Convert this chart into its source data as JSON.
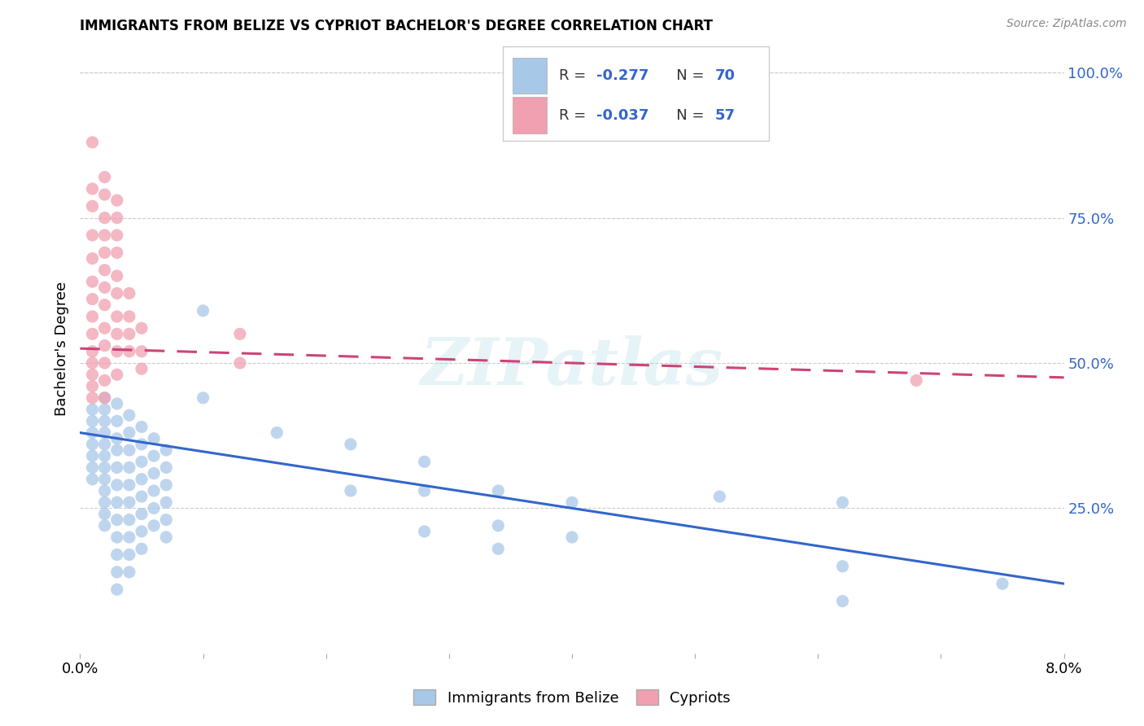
{
  "title": "IMMIGRANTS FROM BELIZE VS CYPRIOT BACHELOR'S DEGREE CORRELATION CHART",
  "source": "Source: ZipAtlas.com",
  "ylabel": "Bachelor's Degree",
  "right_yticks": [
    "100.0%",
    "75.0%",
    "50.0%",
    "25.0%"
  ],
  "right_ytick_vals": [
    1.0,
    0.75,
    0.5,
    0.25
  ],
  "xlim": [
    0.0,
    0.08
  ],
  "ylim": [
    0.0,
    1.05
  ],
  "legend_label1": "Immigrants from Belize",
  "legend_label2": "Cypriots",
  "color_blue": "#A8C8E8",
  "color_pink": "#F0A0B0",
  "line_color_blue": "#3366CC",
  "line_color_pink": "#CC4477",
  "watermark": "ZIPatlas",
  "blue_scatter": [
    [
      0.001,
      0.42
    ],
    [
      0.001,
      0.4
    ],
    [
      0.001,
      0.38
    ],
    [
      0.001,
      0.36
    ],
    [
      0.001,
      0.34
    ],
    [
      0.001,
      0.32
    ],
    [
      0.001,
      0.3
    ],
    [
      0.002,
      0.44
    ],
    [
      0.002,
      0.42
    ],
    [
      0.002,
      0.4
    ],
    [
      0.002,
      0.38
    ],
    [
      0.002,
      0.36
    ],
    [
      0.002,
      0.34
    ],
    [
      0.002,
      0.32
    ],
    [
      0.002,
      0.3
    ],
    [
      0.002,
      0.28
    ],
    [
      0.002,
      0.26
    ],
    [
      0.002,
      0.24
    ],
    [
      0.002,
      0.22
    ],
    [
      0.003,
      0.43
    ],
    [
      0.003,
      0.4
    ],
    [
      0.003,
      0.37
    ],
    [
      0.003,
      0.35
    ],
    [
      0.003,
      0.32
    ],
    [
      0.003,
      0.29
    ],
    [
      0.003,
      0.26
    ],
    [
      0.003,
      0.23
    ],
    [
      0.003,
      0.2
    ],
    [
      0.003,
      0.17
    ],
    [
      0.003,
      0.14
    ],
    [
      0.003,
      0.11
    ],
    [
      0.004,
      0.41
    ],
    [
      0.004,
      0.38
    ],
    [
      0.004,
      0.35
    ],
    [
      0.004,
      0.32
    ],
    [
      0.004,
      0.29
    ],
    [
      0.004,
      0.26
    ],
    [
      0.004,
      0.23
    ],
    [
      0.004,
      0.2
    ],
    [
      0.004,
      0.17
    ],
    [
      0.004,
      0.14
    ],
    [
      0.005,
      0.39
    ],
    [
      0.005,
      0.36
    ],
    [
      0.005,
      0.33
    ],
    [
      0.005,
      0.3
    ],
    [
      0.005,
      0.27
    ],
    [
      0.005,
      0.24
    ],
    [
      0.005,
      0.21
    ],
    [
      0.005,
      0.18
    ],
    [
      0.006,
      0.37
    ],
    [
      0.006,
      0.34
    ],
    [
      0.006,
      0.31
    ],
    [
      0.006,
      0.28
    ],
    [
      0.006,
      0.25
    ],
    [
      0.006,
      0.22
    ],
    [
      0.007,
      0.35
    ],
    [
      0.007,
      0.32
    ],
    [
      0.007,
      0.29
    ],
    [
      0.007,
      0.26
    ],
    [
      0.007,
      0.23
    ],
    [
      0.007,
      0.2
    ],
    [
      0.01,
      0.59
    ],
    [
      0.01,
      0.44
    ],
    [
      0.016,
      0.38
    ],
    [
      0.022,
      0.36
    ],
    [
      0.022,
      0.28
    ],
    [
      0.028,
      0.33
    ],
    [
      0.028,
      0.28
    ],
    [
      0.028,
      0.21
    ],
    [
      0.034,
      0.28
    ],
    [
      0.034,
      0.22
    ],
    [
      0.034,
      0.18
    ],
    [
      0.04,
      0.26
    ],
    [
      0.04,
      0.2
    ],
    [
      0.052,
      0.27
    ],
    [
      0.062,
      0.26
    ],
    [
      0.062,
      0.15
    ],
    [
      0.062,
      0.09
    ],
    [
      0.075,
      0.12
    ]
  ],
  "pink_scatter": [
    [
      0.001,
      0.88
    ],
    [
      0.001,
      0.8
    ],
    [
      0.001,
      0.77
    ],
    [
      0.001,
      0.72
    ],
    [
      0.001,
      0.68
    ],
    [
      0.001,
      0.64
    ],
    [
      0.001,
      0.61
    ],
    [
      0.001,
      0.58
    ],
    [
      0.001,
      0.55
    ],
    [
      0.001,
      0.52
    ],
    [
      0.001,
      0.5
    ],
    [
      0.001,
      0.48
    ],
    [
      0.001,
      0.46
    ],
    [
      0.001,
      0.44
    ],
    [
      0.002,
      0.82
    ],
    [
      0.002,
      0.79
    ],
    [
      0.002,
      0.75
    ],
    [
      0.002,
      0.72
    ],
    [
      0.002,
      0.69
    ],
    [
      0.002,
      0.66
    ],
    [
      0.002,
      0.63
    ],
    [
      0.002,
      0.6
    ],
    [
      0.002,
      0.56
    ],
    [
      0.002,
      0.53
    ],
    [
      0.002,
      0.5
    ],
    [
      0.002,
      0.47
    ],
    [
      0.002,
      0.44
    ],
    [
      0.003,
      0.78
    ],
    [
      0.003,
      0.75
    ],
    [
      0.003,
      0.72
    ],
    [
      0.003,
      0.69
    ],
    [
      0.003,
      0.65
    ],
    [
      0.003,
      0.62
    ],
    [
      0.003,
      0.58
    ],
    [
      0.003,
      0.55
    ],
    [
      0.003,
      0.52
    ],
    [
      0.003,
      0.48
    ],
    [
      0.004,
      0.62
    ],
    [
      0.004,
      0.58
    ],
    [
      0.004,
      0.55
    ],
    [
      0.004,
      0.52
    ],
    [
      0.005,
      0.56
    ],
    [
      0.005,
      0.52
    ],
    [
      0.005,
      0.49
    ],
    [
      0.013,
      0.55
    ],
    [
      0.013,
      0.5
    ],
    [
      0.068,
      0.47
    ]
  ],
  "blue_line_x": [
    0.0,
    0.08
  ],
  "blue_line_y": [
    0.38,
    0.12
  ],
  "pink_line_x": [
    0.0,
    0.08
  ],
  "pink_line_y": [
    0.525,
    0.475
  ]
}
